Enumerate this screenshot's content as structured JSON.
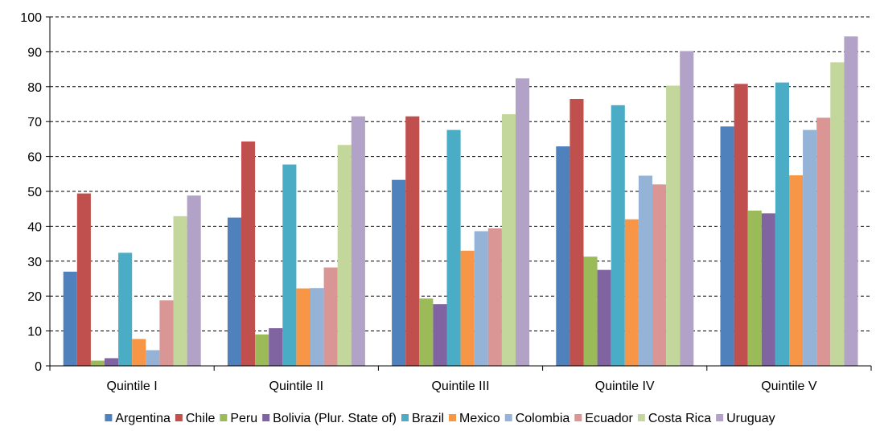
{
  "chart_data": {
    "type": "bar",
    "categories": [
      "Quintile I",
      "Quintile II",
      "Quintile III",
      "Quintile IV",
      "Quintile V"
    ],
    "series": [
      {
        "name": "Argentina",
        "color": "#4F81BD",
        "values": [
          27,
          42.5,
          53.3,
          62.9,
          68.6
        ]
      },
      {
        "name": "Chile",
        "color": "#C0504D",
        "values": [
          49.4,
          64.3,
          71.5,
          76.5,
          80.8
        ]
      },
      {
        "name": "Peru",
        "color": "#9BBB59",
        "values": [
          1.5,
          9,
          19.3,
          31.3,
          44.5
        ]
      },
      {
        "name": "Bolivia (Plur. State of)",
        "color": "#8064A2",
        "values": [
          2.2,
          10.8,
          17.7,
          27.5,
          43.7
        ]
      },
      {
        "name": "Brazil",
        "color": "#4BACC6",
        "values": [
          32.4,
          57.7,
          67.6,
          74.7,
          81.2
        ]
      },
      {
        "name": "Mexico",
        "color": "#F79646",
        "values": [
          7.7,
          22.2,
          33,
          42,
          54.6
        ]
      },
      {
        "name": "Colombia",
        "color": "#95B3D7",
        "values": [
          4.5,
          22.3,
          38.6,
          54.5,
          67.6
        ]
      },
      {
        "name": "Ecuador",
        "color": "#D99694",
        "values": [
          18.8,
          28.2,
          39.4,
          52,
          71.1
        ]
      },
      {
        "name": "Costa Rica",
        "color": "#C3D69B",
        "values": [
          42.9,
          63.3,
          72.1,
          80.3,
          87
        ]
      },
      {
        "name": "Uruguay",
        "color": "#B3A2C7",
        "values": [
          48.8,
          71.5,
          82.4,
          90.2,
          94.4
        ]
      }
    ],
    "ylim": [
      0,
      100
    ],
    "yticks": [
      0,
      10,
      20,
      30,
      40,
      50,
      60,
      70,
      80,
      90,
      100
    ],
    "grid": true,
    "legend_position": "bottom"
  }
}
